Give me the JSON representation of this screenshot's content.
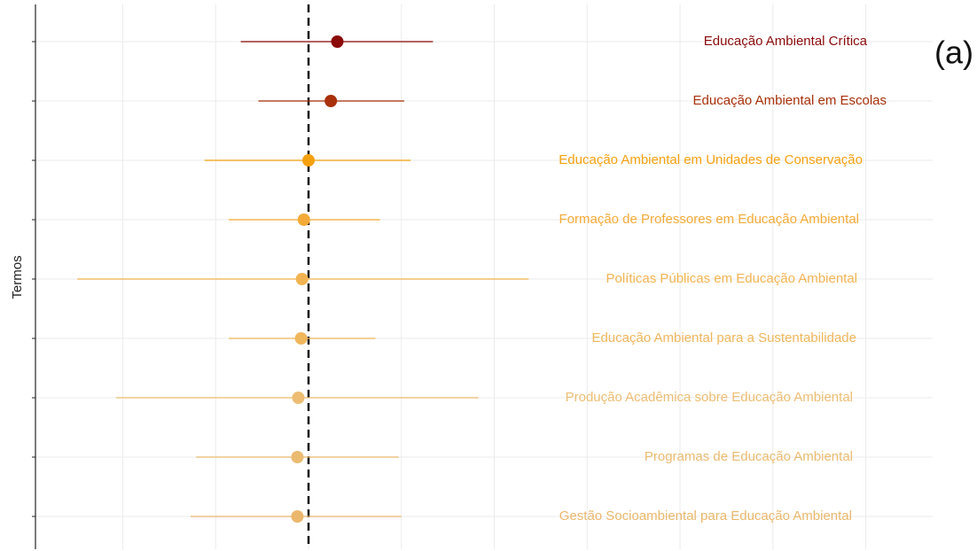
{
  "chart_data": {
    "type": "forest",
    "ylabel": "Termos",
    "annotation": "(a)",
    "categories": [
      "Educação Ambiental Crítica",
      "Educação Ambiental em Escolas",
      "Educação Ambiental em Unidades de Conservação",
      "Formação de Professores em Educação Ambiental",
      "Políticas Públicas em Educação Ambiental",
      "Educação Ambiental para a Sustentabilidade",
      "Produção Acadêmica sobre Educação Ambiental",
      "Programas de Educação Ambiental",
      "Gestão Socioambiental para Educação Ambiental"
    ],
    "values": [
      0.31,
      0.24,
      0,
      -0.05,
      -0.07,
      -0.08,
      -0.11,
      -0.12,
      -0.12
    ],
    "lower": [
      -0.73,
      -0.54,
      -1.12,
      -0.86,
      -2.49,
      -0.86,
      -2.07,
      -1.21,
      -1.27
    ],
    "upper": [
      1.34,
      1.03,
      1.1,
      0.77,
      2.37,
      0.72,
      1.83,
      0.97,
      1.0
    ],
    "colors": [
      "#8b0a0a",
      "#a8300a",
      "#f5a10f",
      "#f4aa36",
      "#f2b452",
      "#f0b65c",
      "#ecbd72",
      "#ebbb70",
      "#eab76c"
    ],
    "xlim": [
      -2.94,
      6.72
    ],
    "xticks": [
      -2,
      -1,
      0,
      1,
      2,
      3,
      4,
      5,
      6
    ],
    "grid": true,
    "reference_line": 0
  }
}
